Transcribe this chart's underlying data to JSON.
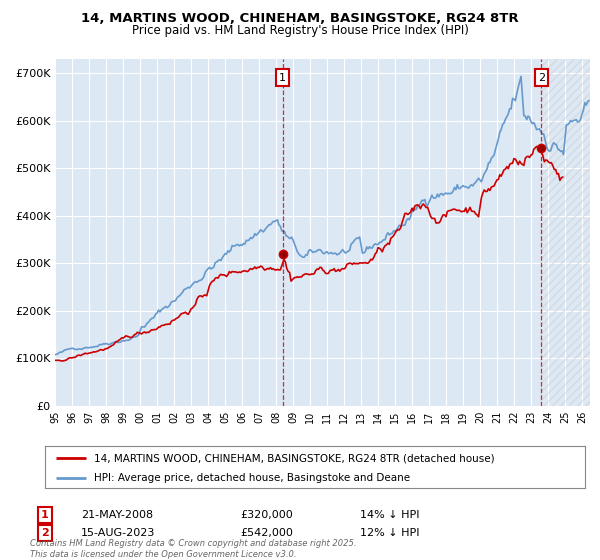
{
  "title": "14, MARTINS WOOD, CHINEHAM, BASINGSTOKE, RG24 8TR",
  "subtitle": "Price paid vs. HM Land Registry's House Price Index (HPI)",
  "legend_label_red": "14, MARTINS WOOD, CHINEHAM, BASINGSTOKE, RG24 8TR (detached house)",
  "legend_label_blue": "HPI: Average price, detached house, Basingstoke and Deane",
  "annotation1_label": "1",
  "annotation1_date": "21-MAY-2008",
  "annotation1_price": "£320,000",
  "annotation1_hpi": "14% ↓ HPI",
  "annotation1_year": 2008.38,
  "annotation1_value": 320000,
  "annotation2_label": "2",
  "annotation2_date": "15-AUG-2023",
  "annotation2_price": "£542,000",
  "annotation2_hpi": "12% ↓ HPI",
  "annotation2_year": 2023.62,
  "annotation2_value": 542000,
  "footer": "Contains HM Land Registry data © Crown copyright and database right 2025.\nThis data is licensed under the Open Government Licence v3.0.",
  "ylim": [
    0,
    730000
  ],
  "xlim_start": 1995.0,
  "xlim_end": 2026.5,
  "yticks": [
    0,
    100000,
    200000,
    300000,
    400000,
    500000,
    600000,
    700000
  ],
  "ytick_labels": [
    "£0",
    "£100K",
    "£200K",
    "£300K",
    "£400K",
    "£500K",
    "£600K",
    "£700K"
  ],
  "plot_bg_color": "#dde8f5",
  "red_color": "#cc0000",
  "blue_color": "#6699cc",
  "grid_color": "#ffffff"
}
